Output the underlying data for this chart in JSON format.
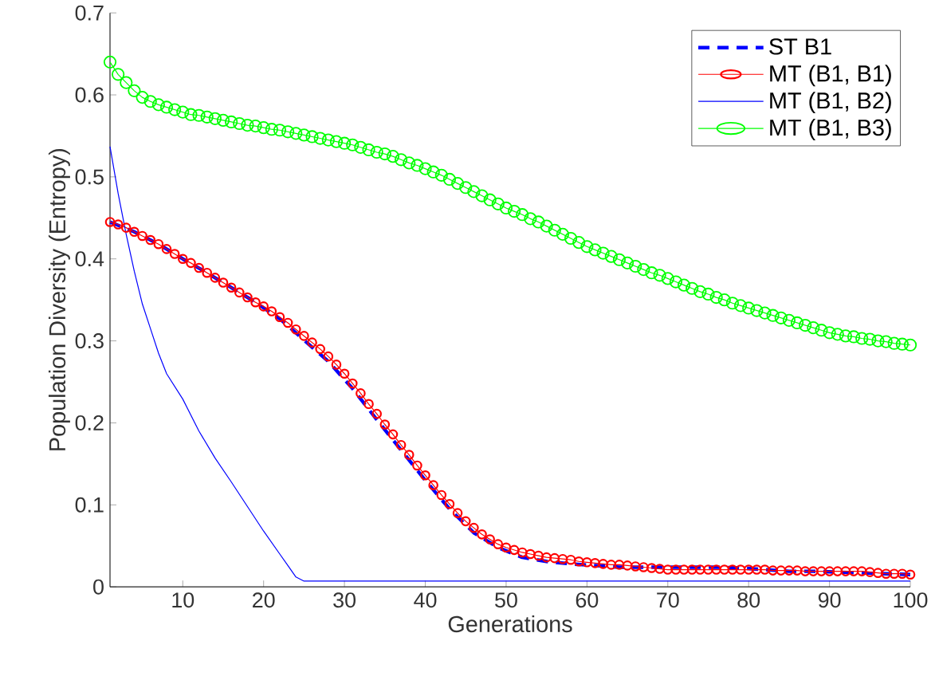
{
  "chart_data": {
    "type": "line",
    "xlabel": "Generations",
    "ylabel": "Population Diversity (Entropy)",
    "xlim": [
      1,
      100
    ],
    "ylim": [
      0,
      0.7
    ],
    "xticks": [
      10,
      20,
      30,
      40,
      50,
      60,
      70,
      80,
      90,
      100
    ],
    "yticks": [
      0,
      0.1,
      0.2,
      0.3,
      0.4,
      0.5,
      0.6,
      0.7
    ],
    "grid": false,
    "legend": "top right",
    "series": [
      {
        "name": "ST B1",
        "color": "#0000ff",
        "line_style": "dashed",
        "marker": "none",
        "x": [
          1,
          4,
          7,
          10,
          13,
          16,
          19,
          22,
          25,
          28,
          31,
          34,
          37,
          40,
          43,
          46,
          49,
          52,
          55,
          58,
          61,
          64,
          67,
          70,
          73,
          76,
          79,
          82,
          85,
          88,
          91,
          94,
          97,
          100
        ],
        "values": [
          0.445,
          0.433,
          0.418,
          0.4,
          0.383,
          0.365,
          0.347,
          0.327,
          0.301,
          0.275,
          0.242,
          0.204,
          0.167,
          0.13,
          0.095,
          0.066,
          0.048,
          0.036,
          0.031,
          0.028,
          0.026,
          0.024,
          0.024,
          0.024,
          0.024,
          0.024,
          0.023,
          0.021,
          0.019,
          0.019,
          0.018,
          0.017,
          0.016,
          0.015
        ]
      },
      {
        "name": "MT (B1, B1)",
        "color": "#ff0000",
        "line_style": "solid",
        "marker": "circle",
        "x": [
          1,
          2,
          3,
          4,
          5,
          6,
          7,
          8,
          9,
          10,
          11,
          12,
          13,
          14,
          15,
          16,
          17,
          18,
          19,
          20,
          21,
          22,
          23,
          24,
          25,
          26,
          27,
          28,
          29,
          30,
          31,
          32,
          33,
          34,
          35,
          36,
          37,
          38,
          39,
          40,
          41,
          42,
          43,
          44,
          45,
          46,
          47,
          48,
          49,
          50,
          51,
          52,
          53,
          54,
          55,
          56,
          57,
          58,
          59,
          60,
          61,
          62,
          63,
          64,
          65,
          66,
          67,
          68,
          69,
          70,
          71,
          72,
          73,
          74,
          75,
          76,
          77,
          78,
          79,
          80,
          81,
          82,
          83,
          84,
          85,
          86,
          87,
          88,
          89,
          90,
          91,
          92,
          93,
          94,
          95,
          96,
          97,
          98,
          99,
          100
        ],
        "values": [
          0.445,
          0.442,
          0.438,
          0.433,
          0.428,
          0.423,
          0.418,
          0.412,
          0.406,
          0.4,
          0.395,
          0.389,
          0.383,
          0.377,
          0.371,
          0.365,
          0.359,
          0.353,
          0.347,
          0.342,
          0.336,
          0.329,
          0.322,
          0.314,
          0.306,
          0.298,
          0.29,
          0.281,
          0.271,
          0.26,
          0.248,
          0.236,
          0.223,
          0.211,
          0.198,
          0.186,
          0.173,
          0.161,
          0.148,
          0.136,
          0.124,
          0.112,
          0.101,
          0.09,
          0.08,
          0.072,
          0.064,
          0.058,
          0.052,
          0.048,
          0.045,
          0.042,
          0.04,
          0.038,
          0.036,
          0.035,
          0.034,
          0.033,
          0.031,
          0.03,
          0.029,
          0.028,
          0.027,
          0.027,
          0.026,
          0.025,
          0.024,
          0.023,
          0.022,
          0.021,
          0.021,
          0.021,
          0.021,
          0.021,
          0.021,
          0.021,
          0.021,
          0.021,
          0.021,
          0.021,
          0.021,
          0.021,
          0.02,
          0.02,
          0.02,
          0.02,
          0.019,
          0.019,
          0.019,
          0.019,
          0.019,
          0.019,
          0.019,
          0.019,
          0.018,
          0.017,
          0.016,
          0.016,
          0.016,
          0.015
        ]
      },
      {
        "name": "MT (B1, B2)",
        "color": "#0000ff",
        "line_style": "solid",
        "marker": "none",
        "x": [
          1,
          2,
          3,
          4,
          5,
          6,
          7,
          8,
          10,
          12,
          14,
          16,
          18,
          20,
          22,
          23,
          24,
          25,
          30,
          40,
          50,
          60,
          70,
          80,
          90,
          100
        ],
        "values": [
          0.537,
          0.48,
          0.43,
          0.385,
          0.345,
          0.315,
          0.285,
          0.26,
          0.229,
          0.19,
          0.157,
          0.128,
          0.098,
          0.068,
          0.04,
          0.026,
          0.012,
          0.007,
          0.007,
          0.007,
          0.007,
          0.007,
          0.007,
          0.007,
          0.007,
          0.007
        ]
      },
      {
        "name": "MT (B1, B3)",
        "color": "#00ff00",
        "line_style": "solid",
        "marker": "circle",
        "x": [
          1,
          2,
          3,
          4,
          5,
          6,
          7,
          8,
          9,
          10,
          11,
          12,
          13,
          14,
          15,
          16,
          17,
          18,
          19,
          20,
          21,
          22,
          23,
          24,
          25,
          26,
          27,
          28,
          29,
          30,
          31,
          32,
          33,
          34,
          35,
          36,
          37,
          38,
          39,
          40,
          41,
          42,
          43,
          44,
          45,
          46,
          47,
          48,
          49,
          50,
          51,
          52,
          53,
          54,
          55,
          56,
          57,
          58,
          59,
          60,
          61,
          62,
          63,
          64,
          65,
          66,
          67,
          68,
          69,
          70,
          71,
          72,
          73,
          74,
          75,
          76,
          77,
          78,
          79,
          80,
          81,
          82,
          83,
          84,
          85,
          86,
          87,
          88,
          89,
          90,
          91,
          92,
          93,
          94,
          95,
          96,
          97,
          98,
          99,
          100
        ],
        "values": [
          0.64,
          0.625,
          0.615,
          0.605,
          0.597,
          0.592,
          0.588,
          0.585,
          0.582,
          0.579,
          0.576,
          0.575,
          0.573,
          0.571,
          0.569,
          0.567,
          0.565,
          0.563,
          0.562,
          0.56,
          0.558,
          0.557,
          0.555,
          0.553,
          0.551,
          0.549,
          0.547,
          0.545,
          0.543,
          0.541,
          0.539,
          0.536,
          0.533,
          0.53,
          0.528,
          0.525,
          0.521,
          0.517,
          0.514,
          0.51,
          0.506,
          0.502,
          0.497,
          0.492,
          0.487,
          0.482,
          0.477,
          0.472,
          0.467,
          0.462,
          0.458,
          0.454,
          0.449,
          0.445,
          0.44,
          0.435,
          0.43,
          0.425,
          0.42,
          0.415,
          0.411,
          0.407,
          0.403,
          0.399,
          0.395,
          0.391,
          0.387,
          0.383,
          0.38,
          0.376,
          0.372,
          0.368,
          0.364,
          0.36,
          0.357,
          0.353,
          0.35,
          0.346,
          0.343,
          0.34,
          0.337,
          0.334,
          0.331,
          0.328,
          0.325,
          0.322,
          0.319,
          0.316,
          0.313,
          0.31,
          0.308,
          0.306,
          0.305,
          0.303,
          0.302,
          0.3,
          0.299,
          0.297,
          0.296,
          0.295
        ]
      }
    ]
  }
}
